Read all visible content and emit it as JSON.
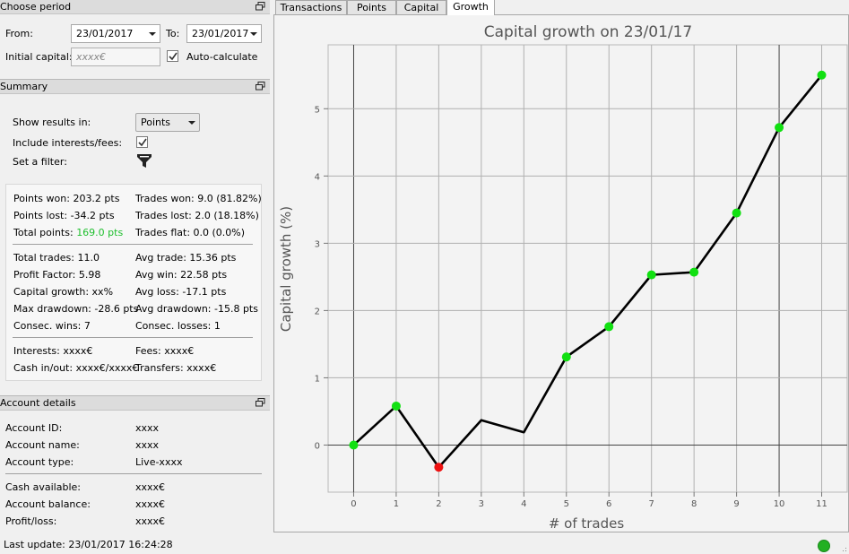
{
  "period": {
    "title": "Choose period",
    "from_label": "From:",
    "from_value": "23/01/2017",
    "to_label": "To:",
    "to_value": "23/01/2017",
    "capital_label": "Initial capital:",
    "capital_placeholder": "xxxx€",
    "autocalc_label": "Auto-calculate"
  },
  "summary": {
    "title": "Summary",
    "show_results_label": "Show results in:",
    "show_results_value": "Points",
    "include_fees_label": "Include interests/fees:",
    "filter_label": "Set a filter:",
    "points_won": "Points won: 203.2 pts",
    "points_lost": "Points lost: -34.2 pts",
    "total_points_label": "Total points:",
    "total_points_value": "169.0 pts",
    "trades_won": "Trades won: 9.0 (81.82%)",
    "trades_lost": "Trades lost: 2.0 (18.18%)",
    "trades_flat": "Trades flat: 0.0 (0.0%)",
    "total_trades": "Total trades: 11.0",
    "profit_factor": "Profit Factor: 5.98",
    "capital_growth": "Capital growth: xx%",
    "max_drawdown": "Max drawdown: -28.6 pts",
    "consec_wins": "Consec. wins: 7",
    "avg_trade": "Avg trade: 15.36 pts",
    "avg_win": "Avg win: 22.58 pts",
    "avg_loss": "Avg loss: -17.1 pts",
    "avg_drawdown": "Avg drawdown: -15.8 pts",
    "consec_losses": "Consec. losses: 1",
    "interests": "Interests: xxxx€",
    "cash_inout": "Cash in/out: xxxx€/xxxx€",
    "fees": "Fees: xxxx€",
    "transfers": "Transfers: xxxx€"
  },
  "account": {
    "title": "Account details",
    "id_label": "Account ID:",
    "id_value": "xxxx",
    "name_label": "Account name:",
    "name_value": "xxxx",
    "type_label": "Account type:",
    "type_value": "Live-xxxx",
    "cash_label": "Cash available:",
    "cash_value": "xxxx€",
    "balance_label": "Account balance:",
    "balance_value": "xxxx€",
    "pl_label": "Profit/loss:",
    "pl_value": "xxxx€"
  },
  "status": {
    "last_update": "Last update: 23/01/2017 16:24:28",
    "connection_color": "#22b022"
  },
  "tabs": [
    {
      "label": "Transactions"
    },
    {
      "label": "Points"
    },
    {
      "label": "Capital"
    },
    {
      "label": "Growth"
    }
  ],
  "icons": {
    "float": "float-window-icon",
    "filter": "funnel-icon",
    "check": "checkmark-icon"
  },
  "chart_data": {
    "type": "line",
    "title": "Capital growth on 23/01/17",
    "xlabel": "# of trades",
    "ylabel": "Capital growth (%)",
    "x": [
      0,
      1,
      2,
      3,
      4,
      5,
      6,
      7,
      8,
      9,
      10,
      11
    ],
    "y": [
      0.0,
      0.58,
      -0.33,
      0.37,
      0.19,
      1.31,
      1.76,
      2.53,
      2.57,
      3.45,
      4.72,
      5.5
    ],
    "markers": [
      "green",
      "green",
      "red",
      null,
      null,
      "green",
      "green",
      "green",
      "green",
      "green",
      "green",
      "green"
    ],
    "marker_colors": {
      "green": "#11e011",
      "red": "#ee1111"
    },
    "xlim": [
      -0.6,
      11.6
    ],
    "ylim": [
      -0.7,
      5.95
    ],
    "xticks": [
      "0",
      "1",
      "2",
      "3",
      "4",
      "5",
      "6",
      "7",
      "8",
      "9",
      "10",
      "11"
    ],
    "yticks": [
      "0",
      "1",
      "2",
      "3",
      "4",
      "5"
    ],
    "grid": true,
    "legend": false
  }
}
